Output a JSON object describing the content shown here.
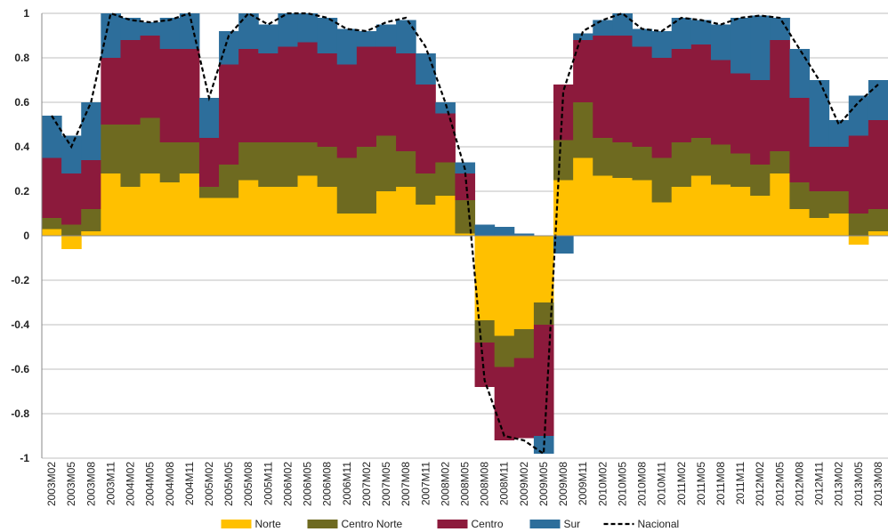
{
  "chart_data": {
    "type": "bar",
    "stacked": true,
    "grid": true,
    "categories": [
      "2003M02",
      "2003M05",
      "2003M08",
      "2003M11",
      "2004M02",
      "2004M05",
      "2004M08",
      "2004M11",
      "2005M02",
      "2005M05",
      "2005M08",
      "2005M11",
      "2006M02",
      "2006M05",
      "2006M08",
      "2006M11",
      "2007M02",
      "2007M05",
      "2007M08",
      "2007M11",
      "2008M02",
      "2008M05",
      "2008M08",
      "2008M11",
      "2009M02",
      "2009M05",
      "2009M08",
      "2009M11",
      "2010M02",
      "2010M05",
      "2010M08",
      "2010M11",
      "2011M02",
      "2011M05",
      "2011M08",
      "2011M11",
      "2012M02",
      "2012M05",
      "2012M08",
      "2012M11",
      "2013M02",
      "2013M05",
      "2013M08"
    ],
    "series": [
      {
        "name": "Norte",
        "color": "#ffc000",
        "values": [
          0.03,
          -0.06,
          0.02,
          0.28,
          0.22,
          0.28,
          0.24,
          0.28,
          0.17,
          0.17,
          0.25,
          0.22,
          0.22,
          0.27,
          0.22,
          0.1,
          0.1,
          0.2,
          0.22,
          0.14,
          0.18,
          0.01,
          -0.38,
          -0.45,
          -0.42,
          -0.3,
          0.25,
          0.35,
          0.27,
          0.26,
          0.25,
          0.15,
          0.22,
          0.27,
          0.23,
          0.22,
          0.18,
          0.28,
          0.12,
          0.08,
          0.1,
          -0.04,
          0.02
        ]
      },
      {
        "name": "Centro Norte",
        "color": "#6e6a20",
        "values": [
          0.05,
          0.05,
          0.1,
          0.22,
          0.28,
          0.25,
          0.18,
          0.14,
          0.05,
          0.15,
          0.17,
          0.2,
          0.2,
          0.15,
          0.18,
          0.25,
          0.3,
          0.25,
          0.16,
          0.14,
          0.15,
          0.15,
          -0.1,
          -0.14,
          -0.13,
          -0.1,
          0.18,
          0.25,
          0.17,
          0.16,
          0.15,
          0.2,
          0.2,
          0.17,
          0.18,
          0.15,
          0.14,
          0.1,
          0.12,
          0.12,
          0.1,
          0.1,
          0.1
        ]
      },
      {
        "name": "Centro",
        "color": "#8c1a3c",
        "values": [
          0.27,
          0.23,
          0.22,
          0.3,
          0.38,
          0.37,
          0.42,
          0.42,
          0.22,
          0.45,
          0.42,
          0.4,
          0.43,
          0.45,
          0.42,
          0.42,
          0.45,
          0.4,
          0.44,
          0.4,
          0.22,
          0.12,
          -0.2,
          -0.33,
          -0.36,
          -0.5,
          0.25,
          0.28,
          0.46,
          0.48,
          0.45,
          0.45,
          0.42,
          0.42,
          0.38,
          0.36,
          0.38,
          0.5,
          0.38,
          0.2,
          0.2,
          0.35,
          0.4
        ]
      },
      {
        "name": "Sur",
        "color": "#2d6e9b",
        "values": [
          0.19,
          0.17,
          0.26,
          0.2,
          0.1,
          0.06,
          0.14,
          0.16,
          0.18,
          0.15,
          0.16,
          0.13,
          0.15,
          0.13,
          0.16,
          0.16,
          0.07,
          0.1,
          0.15,
          0.14,
          0.05,
          0.05,
          0.05,
          0.04,
          0.01,
          -0.08,
          -0.08,
          0.03,
          0.07,
          0.1,
          0.08,
          0.12,
          0.14,
          0.11,
          0.16,
          0.25,
          0.29,
          0.1,
          0.22,
          0.3,
          0.12,
          0.18,
          0.18
        ]
      },
      {
        "name": "Nacional",
        "color": "#000000",
        "kind": "line",
        "dashed": true,
        "values": [
          0.54,
          0.4,
          0.6,
          1.0,
          0.97,
          0.96,
          0.97,
          1.0,
          0.62,
          0.9,
          1.0,
          0.95,
          1.0,
          1.0,
          0.98,
          0.93,
          0.92,
          0.96,
          0.98,
          0.85,
          0.6,
          0.3,
          -0.65,
          -0.9,
          -0.92,
          -0.98,
          0.65,
          0.92,
          0.97,
          1.0,
          0.93,
          0.92,
          0.98,
          0.97,
          0.95,
          0.98,
          0.99,
          0.98,
          0.84,
          0.7,
          0.5,
          0.6,
          0.68
        ]
      }
    ],
    "ylim": [
      -1,
      1
    ],
    "yticks": [
      -1,
      -0.8,
      -0.6,
      -0.4,
      -0.2,
      0,
      0.2,
      0.4,
      0.6,
      0.8,
      1
    ]
  }
}
